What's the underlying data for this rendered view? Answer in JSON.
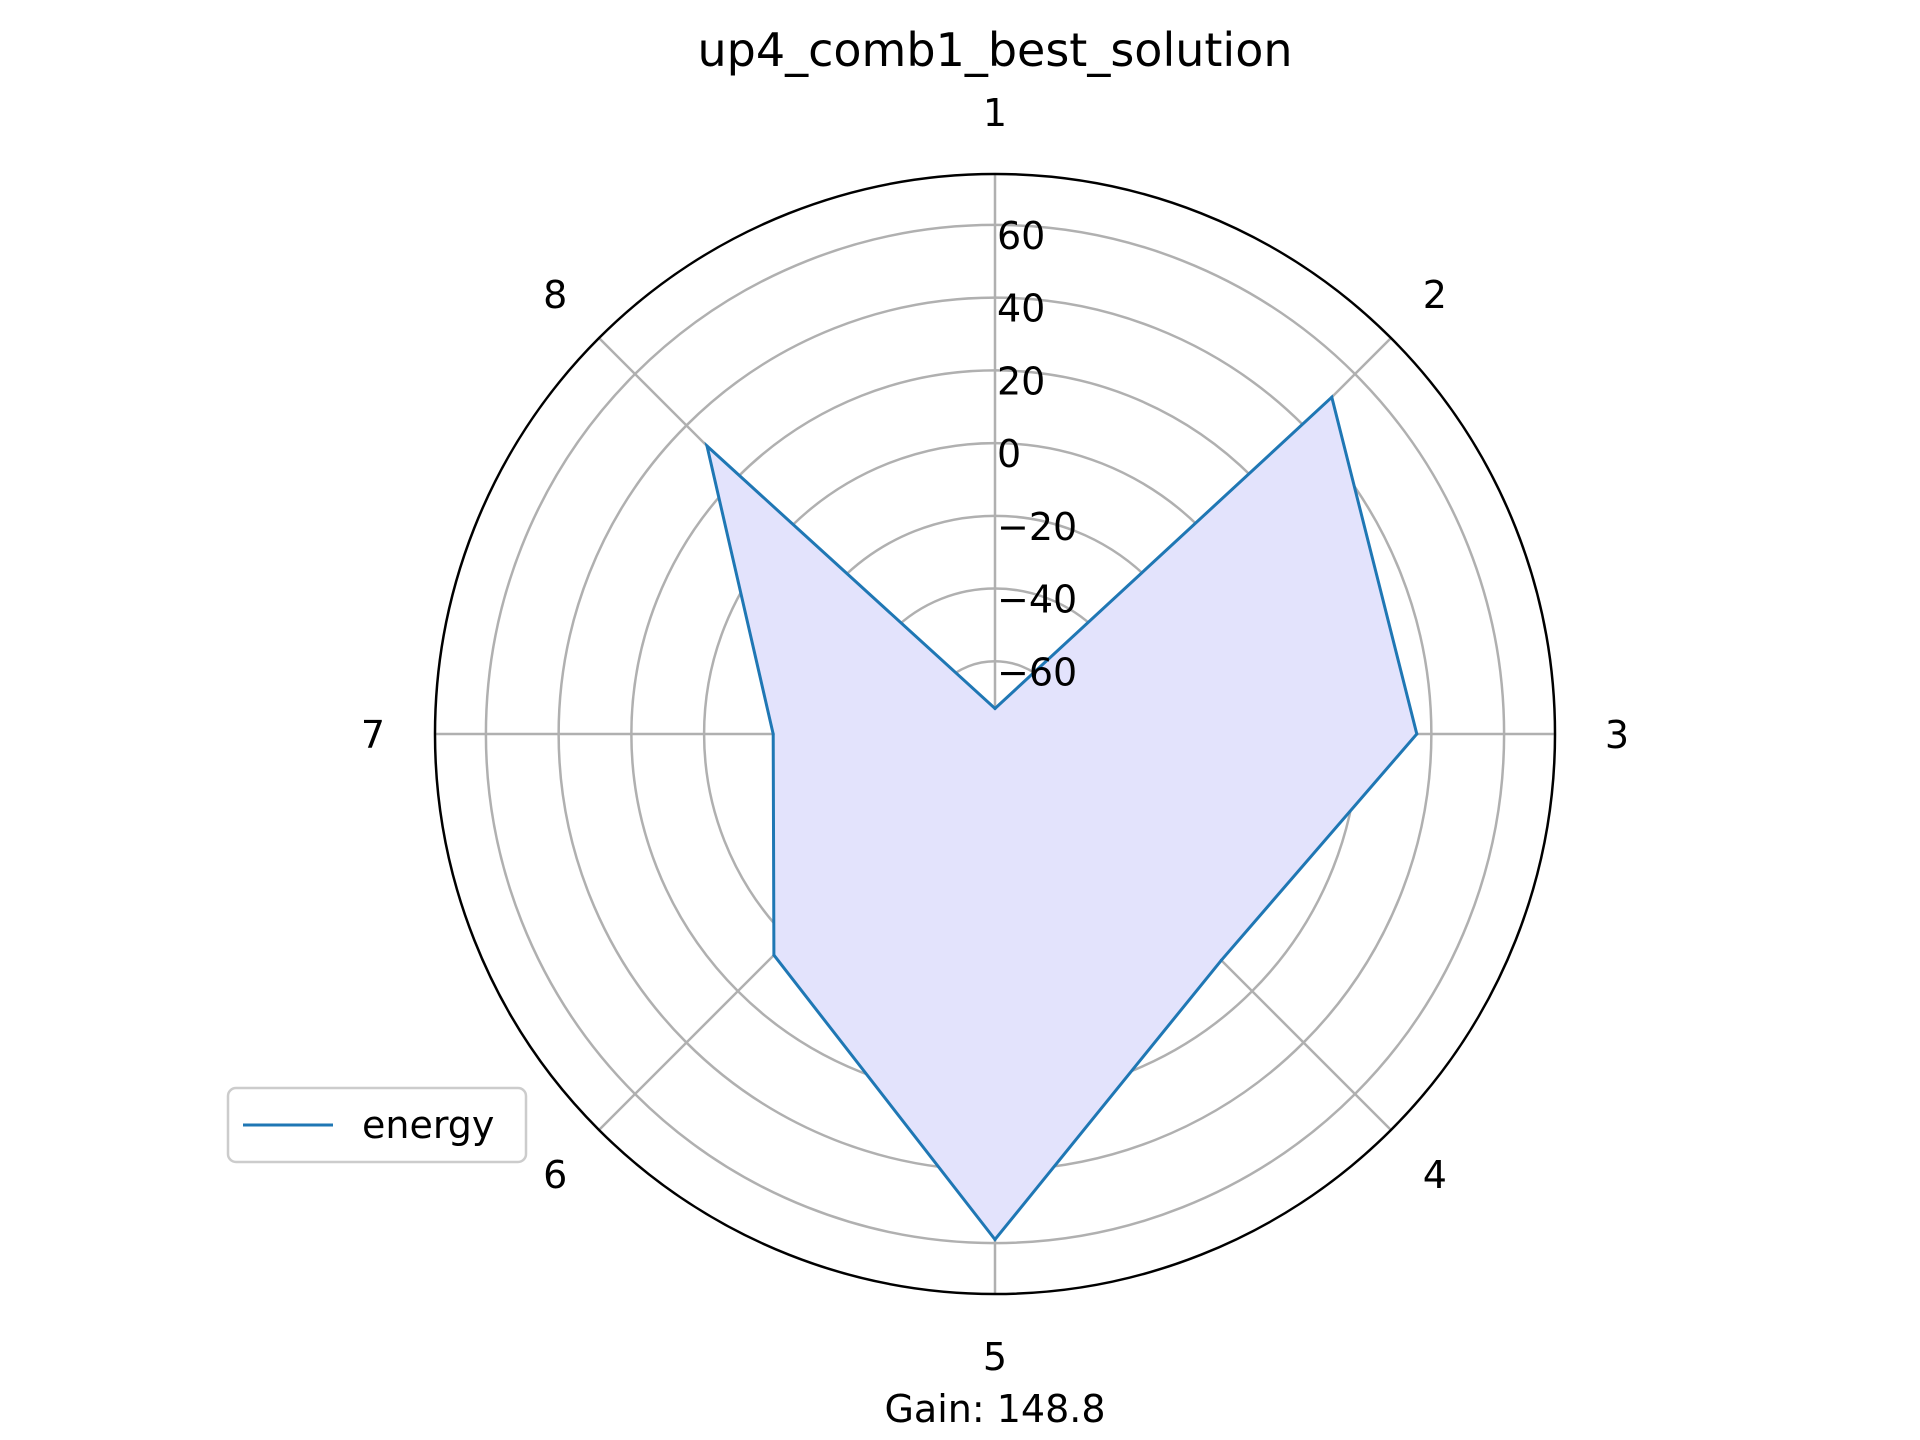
{
  "chart_data": {
    "type": "radar",
    "title": "up4_comb1_best_solution",
    "categories": [
      "1",
      "2",
      "3",
      "4",
      "5",
      "6",
      "7",
      "8"
    ],
    "series": [
      {
        "name": "energy",
        "values": [
          -73,
          51,
          36,
          8,
          59,
          6,
          -19,
          32
        ],
        "line_color": "#1f77b4",
        "fill_color": "#e3e3fc"
      }
    ],
    "r_ticks": [
      -60,
      -40,
      -20,
      0,
      20,
      40,
      60
    ],
    "r_tick_labels": [
      "−60",
      "−40",
      "−20",
      "0",
      "20",
      "40",
      "60"
    ],
    "rlim": [
      -80,
      74
    ],
    "grid": true,
    "legend_position": "lower-left",
    "annotation": "Gain: 148.8"
  }
}
